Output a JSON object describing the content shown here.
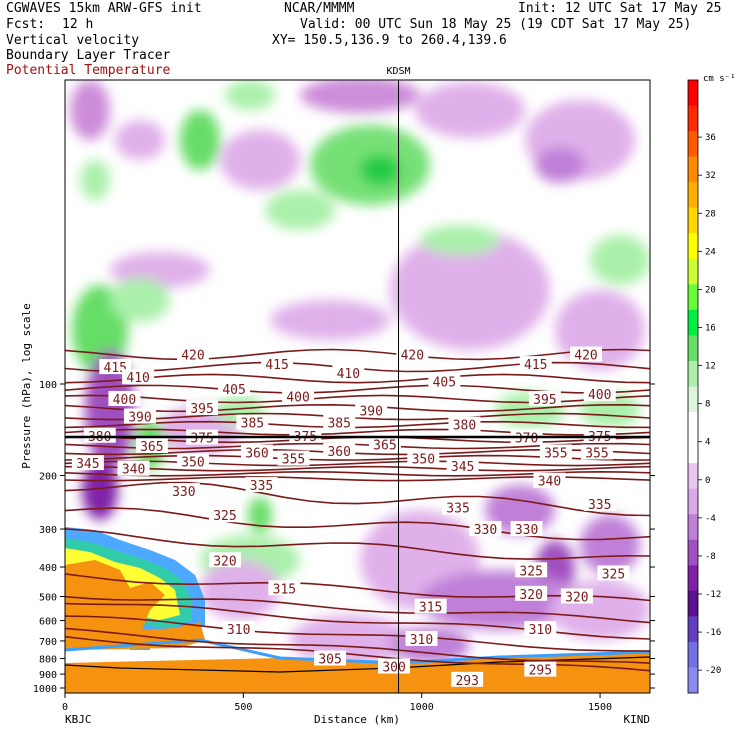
{
  "header": {
    "model": "CGWAVES 15km ARW-GFS init",
    "org": "NCAR/MMMM",
    "init": "Init: 12 UTC Sat 17 May 25",
    "fcst_label": "Fcst:",
    "fcst_value": "12 h",
    "valid": "Valid: 00 UTC Sun 18 May 25 (19 CDT Sat 17 May 25)",
    "field1": "Vertical velocity",
    "xy": "XY= 150.5,136.9 to 260.4,139.6",
    "field2": "Boundary Layer Tracer",
    "field3": "Potential Temperature"
  },
  "colors": {
    "theta": "#7a1a1a",
    "green": "#66dd66",
    "purple": "#c070d0",
    "terrain": "#f5920f"
  },
  "chart_data": {
    "type": "heatmap",
    "x": {
      "label": "Distance (km)",
      "range": [
        0,
        1640
      ],
      "ticks": [
        0,
        500,
        1000,
        1500
      ],
      "tick_labels": [
        "0",
        "500",
        "1000",
        "1500"
      ],
      "left_station": "KBJC",
      "right_station": "KIND",
      "marker_station": "KDSM",
      "marker_km": 935
    },
    "y": {
      "label": "Pressure (hPa), log scale",
      "scale": "log",
      "ticks": [
        100,
        200,
        300,
        400,
        500,
        600,
        700,
        800,
        900,
        1000
      ],
      "tick_labels": [
        "100",
        "200",
        "300",
        "400",
        "500",
        "600",
        "700",
        "800",
        "900",
        "1000"
      ]
    },
    "colorbar": {
      "unit": "cm s⁻¹",
      "levels": [
        36,
        32,
        28,
        24,
        20,
        16,
        12,
        8,
        4,
        0,
        -4,
        -8,
        -12,
        -16,
        -20
      ],
      "labels": [
        "36",
        "32",
        "28",
        "24",
        "20",
        "16",
        "12",
        "8",
        "4",
        "0",
        "-4",
        "-8",
        "-12",
        "-16",
        "-20"
      ],
      "colors": [
        "#ff0000",
        "#ff2a00",
        "#ff5a00",
        "#ff8a00",
        "#ffb000",
        "#ffd800",
        "#ffff00",
        "#ccff33",
        "#66ff33",
        "#00ee44",
        "#66dd66",
        "#aaf0aa",
        "#ddf5dd",
        "#ffffff",
        "#ffffff",
        "#e8c6f0",
        "#d8a8e8",
        "#c080d8",
        "#a050c0",
        "#8020a8",
        "#5a1090",
        "#6040c0",
        "#7070e0",
        "#8a8af0"
      ]
    },
    "theta_labels": [
      {
        "v": "420",
        "x": 140,
        "p": 80
      },
      {
        "v": "420",
        "x": 380,
        "p": 80
      },
      {
        "v": "420",
        "x": 570,
        "p": 80
      },
      {
        "v": "415",
        "x": 55,
        "p": 88
      },
      {
        "v": "415",
        "x": 232,
        "p": 86
      },
      {
        "v": "415",
        "x": 515,
        "p": 86
      },
      {
        "v": "410",
        "x": 80,
        "p": 95
      },
      {
        "v": "410",
        "x": 310,
        "p": 92
      },
      {
        "v": "405",
        "x": 185,
        "p": 104
      },
      {
        "v": "405",
        "x": 415,
        "p": 98
      },
      {
        "v": "400",
        "x": 65,
        "p": 112
      },
      {
        "v": "400",
        "x": 255,
        "p": 110
      },
      {
        "v": "400",
        "x": 585,
        "p": 108
      },
      {
        "v": "395",
        "x": 150,
        "p": 120
      },
      {
        "v": "395",
        "x": 525,
        "p": 112
      },
      {
        "v": "390",
        "x": 82,
        "p": 128
      },
      {
        "v": "390",
        "x": 335,
        "p": 122
      },
      {
        "v": "385",
        "x": 205,
        "p": 134
      },
      {
        "v": "385",
        "x": 300,
        "p": 134
      },
      {
        "v": "380",
        "x": 38,
        "p": 148
      },
      {
        "v": "380",
        "x": 437,
        "p": 136
      },
      {
        "v": "375",
        "x": 150,
        "p": 150
      },
      {
        "v": "375",
        "x": 263,
        "p": 148
      },
      {
        "v": "375",
        "x": 585,
        "p": 148
      },
      {
        "v": "370",
        "x": 505,
        "p": 150
      },
      {
        "v": "365",
        "x": 95,
        "p": 160
      },
      {
        "v": "365",
        "x": 350,
        "p": 158
      },
      {
        "v": "360",
        "x": 210,
        "p": 168
      },
      {
        "v": "360",
        "x": 300,
        "p": 166
      },
      {
        "v": "355",
        "x": 250,
        "p": 176
      },
      {
        "v": "355",
        "x": 537,
        "p": 168
      },
      {
        "v": "355",
        "x": 582,
        "p": 168
      },
      {
        "v": "350",
        "x": 140,
        "p": 180
      },
      {
        "v": "350",
        "x": 392,
        "p": 176
      },
      {
        "v": "345",
        "x": 25,
        "p": 182
      },
      {
        "v": "345",
        "x": 435,
        "p": 186
      },
      {
        "v": "340",
        "x": 75,
        "p": 190
      },
      {
        "v": "340",
        "x": 530,
        "p": 208
      },
      {
        "v": "335",
        "x": 215,
        "p": 215
      },
      {
        "v": "335",
        "x": 430,
        "p": 255
      },
      {
        "v": "335",
        "x": 585,
        "p": 248
      },
      {
        "v": "330",
        "x": 130,
        "p": 225
      },
      {
        "v": "330",
        "x": 460,
        "p": 300
      },
      {
        "v": "330",
        "x": 505,
        "p": 300
      },
      {
        "v": "325",
        "x": 175,
        "p": 270
      },
      {
        "v": "325",
        "x": 510,
        "p": 410
      },
      {
        "v": "325",
        "x": 600,
        "p": 420
      },
      {
        "v": "320",
        "x": 175,
        "p": 380
      },
      {
        "v": "320",
        "x": 510,
        "p": 490
      },
      {
        "v": "320",
        "x": 560,
        "p": 500
      },
      {
        "v": "315",
        "x": 240,
        "p": 470
      },
      {
        "v": "315",
        "x": 400,
        "p": 540
      },
      {
        "v": "310",
        "x": 190,
        "p": 640
      },
      {
        "v": "310",
        "x": 390,
        "p": 690
      },
      {
        "v": "310",
        "x": 520,
        "p": 640
      },
      {
        "v": "305",
        "x": 290,
        "p": 800
      },
      {
        "v": "300",
        "x": 360,
        "p": 850
      },
      {
        "v": "295",
        "x": 520,
        "p": 870
      },
      {
        "v": "293",
        "x": 440,
        "p": 940
      }
    ]
  }
}
